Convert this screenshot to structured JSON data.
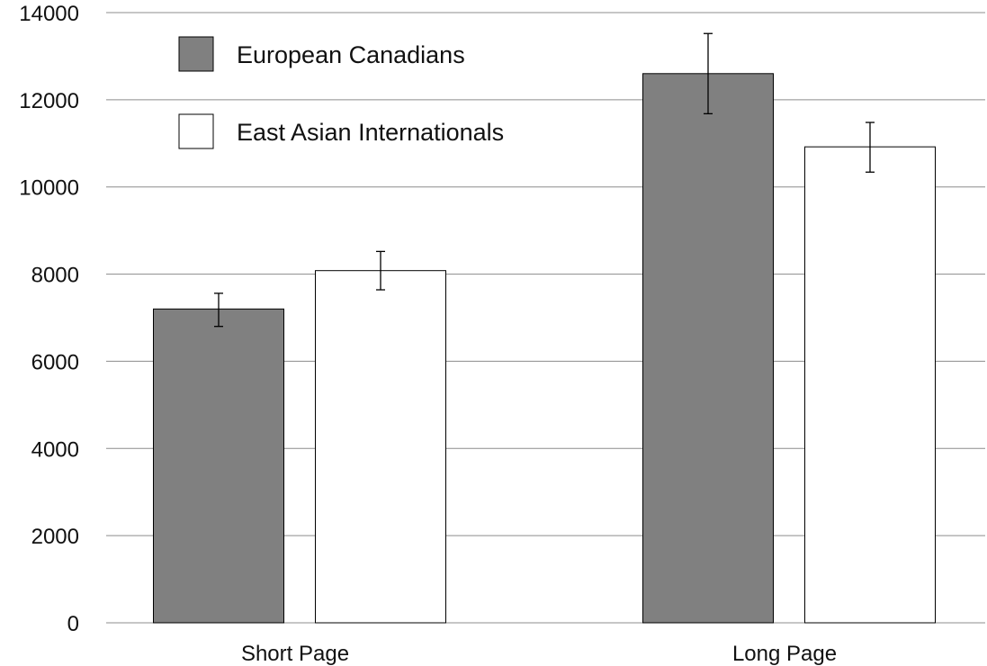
{
  "chart_data": {
    "type": "bar",
    "title": "",
    "xlabel": "",
    "ylabel": "",
    "categories": [
      "Short Page",
      "Long Page"
    ],
    "ylim": [
      0,
      14000
    ],
    "yticks": [
      0,
      2000,
      4000,
      6000,
      8000,
      10000,
      12000,
      14000
    ],
    "grid": true,
    "legend_position": "top-left",
    "series": [
      {
        "name": "European Canadians",
        "color": "#808080",
        "values": [
          7200,
          12600
        ],
        "error_low": [
          6800,
          11680
        ],
        "error_high": [
          7560,
          13520
        ]
      },
      {
        "name": "East Asian Internationals",
        "color": "#ffffff",
        "values": [
          8080,
          10920
        ],
        "error_low": [
          7640,
          10340
        ],
        "error_high": [
          8520,
          11480
        ]
      }
    ]
  }
}
